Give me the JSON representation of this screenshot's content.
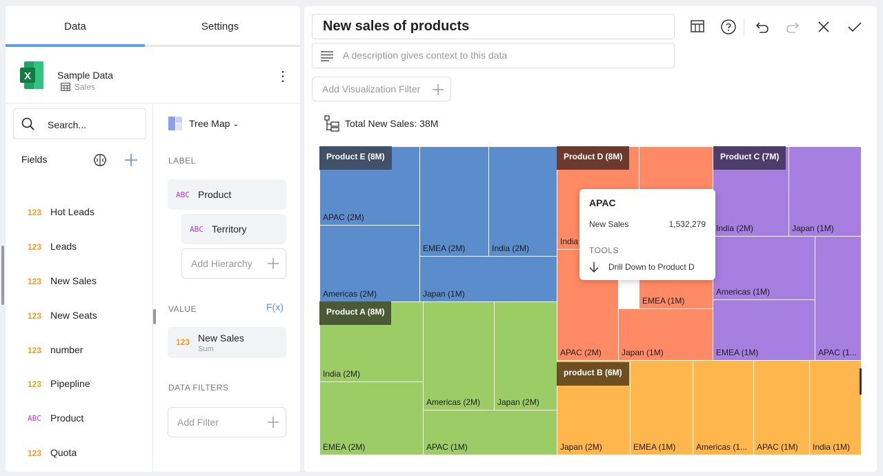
{
  "tabs": {
    "data": "Data",
    "settings": "Settings"
  },
  "datasource": {
    "name": "Sample Data",
    "sheet": "Sales",
    "icon": "excel-icon"
  },
  "search": {
    "placeholder": "Search..."
  },
  "fields": {
    "title": "Fields",
    "items": [
      {
        "type": "123",
        "name": "Hot Leads"
      },
      {
        "type": "123",
        "name": "Leads"
      },
      {
        "type": "123",
        "name": "New Sales"
      },
      {
        "type": "123",
        "name": "New Seats"
      },
      {
        "type": "123",
        "name": "number"
      },
      {
        "type": "123",
        "name": "Pipepline"
      },
      {
        "type": "ABC",
        "name": "Product"
      },
      {
        "type": "123",
        "name": "Quota"
      }
    ]
  },
  "config": {
    "viz_type": "Tree Map",
    "label_section": "LABEL",
    "label_items": [
      {
        "type": "ABC",
        "name": "Product"
      },
      {
        "type": "ABC",
        "name": "Territory"
      }
    ],
    "add_hierarchy": "Add Hierarchy",
    "value_section": "VALUE",
    "fx": "F(x)",
    "value_item": {
      "type": "123",
      "name": "New Sales",
      "agg": "Sum"
    },
    "filters_section": "DATA FILTERS",
    "add_filter": "Add Filter"
  },
  "viz": {
    "title": "New sales of products",
    "description_placeholder": "A description gives context to this data",
    "add_viz_filter": "Add Visualization Filter",
    "total": "Total New Sales: 38M"
  },
  "colors": {
    "product_e": "#5b8ccc",
    "product_a": "#9ccc65",
    "product_d": "#ff8a65",
    "product_c": "#a67fe0",
    "product_b": "#ffb74d"
  },
  "treemap": {
    "groups": [
      {
        "header": "Product E (8M)",
        "cells": [
          "APAC (2M)",
          "EMEA (2M)",
          "India (2M)",
          "Americas (2M)",
          "Japan (1M)"
        ]
      },
      {
        "header": "Product A (8M)",
        "cells": [
          "India (2M)",
          "Americas (2M)",
          "Japan (2M)",
          "EMEA (2M)",
          "APAC (1M)"
        ]
      },
      {
        "header": "Product D (8M)",
        "cells": [
          "India",
          "EMEA (1M)",
          "APAC (2M)",
          "Japan (1M)"
        ]
      },
      {
        "header": "Product C (7M)",
        "cells": [
          "India (2M)",
          "Japan (1M)",
          "Americas (1M)",
          "EMEA (1M)",
          "APAC (1..."
        ]
      },
      {
        "header": "product B (6M)",
        "cells": [
          "Japan (2M)",
          "EMEA (1M)",
          "Americas (1...",
          "APAC (1M)",
          "India (1M)"
        ]
      }
    ]
  },
  "tooltip": {
    "title": "APAC",
    "key": "New Sales",
    "value": "1,532,279",
    "tools_label": "TOOLS",
    "drill_label": "Drill Down to Product D"
  }
}
